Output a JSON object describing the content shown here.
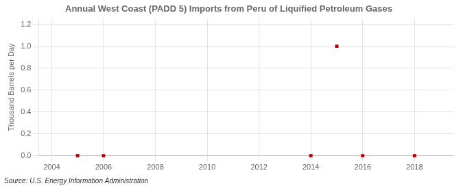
{
  "chart_data": {
    "type": "scatter",
    "title": "Annual West Coast (PADD 5) Imports from Peru of Liquified Petroleum Gases",
    "ylabel": "Thousand Barrels per Day",
    "source": "Source: U.S. Energy Information Administration",
    "x": [
      2005,
      2006,
      2014,
      2015,
      2016,
      2018
    ],
    "values": [
      0.0,
      0.0,
      0.0,
      1.0,
      0.0,
      0.0
    ],
    "color": "#c00000",
    "marker": "square",
    "xlim": [
      2003.5,
      2019.5
    ],
    "xticks": [
      2004,
      2006,
      2008,
      2010,
      2012,
      2014,
      2016,
      2018
    ],
    "ylim": [
      0.0,
      1.25
    ],
    "yticks": [
      {
        "value": 0,
        "label": "0.0"
      },
      0.2,
      0.4,
      0.6,
      0.8,
      {
        "value": 1,
        "label": "1.0"
      },
      1.2
    ],
    "grid": true
  }
}
